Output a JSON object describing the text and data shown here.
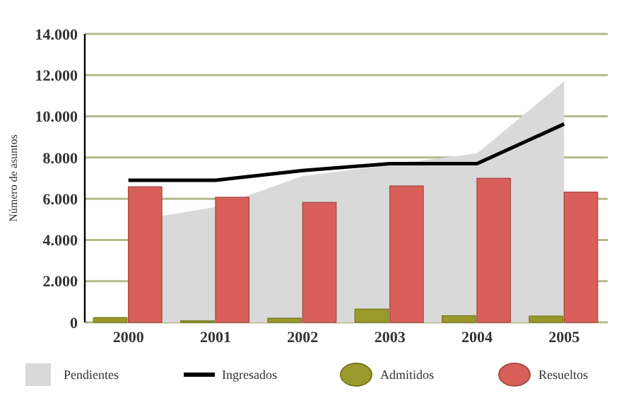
{
  "chart_data": {
    "type": "bar",
    "ylabel": "Número de asuntos",
    "categories": [
      "2000",
      "2001",
      "2002",
      "2003",
      "2004",
      "2005"
    ],
    "series": [
      {
        "name": "Pendientes",
        "type": "area",
        "color": "#d9d9d9",
        "values": [
          4900,
          5600,
          7100,
          7650,
          8200,
          11700
        ]
      },
      {
        "name": "Ingresados",
        "type": "line",
        "color": "#000000",
        "values": [
          6900,
          6900,
          7370,
          7700,
          7700,
          9630
        ]
      },
      {
        "name": "Admitidos",
        "color": "#9a9a2a",
        "values": [
          230,
          70,
          200,
          640,
          320,
          300
        ]
      },
      {
        "name": "Resueltos",
        "color": "#d9605a",
        "values": [
          6580,
          6070,
          5820,
          6620,
          6990,
          6320
        ]
      }
    ],
    "ylim": [
      0,
      14000
    ],
    "yticks": [
      {
        "value": 0,
        "label": "0"
      },
      {
        "value": 2000,
        "label": "2.000"
      },
      {
        "value": 4000,
        "label": "4.000"
      },
      {
        "value": 6000,
        "label": "6.000"
      },
      {
        "value": 8000,
        "label": "8.000"
      },
      {
        "value": 10000,
        "label": "10.000"
      },
      {
        "value": 12000,
        "label": "12.000"
      },
      {
        "value": 14000,
        "label": "14.000"
      }
    ],
    "grid": "y",
    "legend": "bottom",
    "marker": "none",
    "line_style": "solid"
  }
}
